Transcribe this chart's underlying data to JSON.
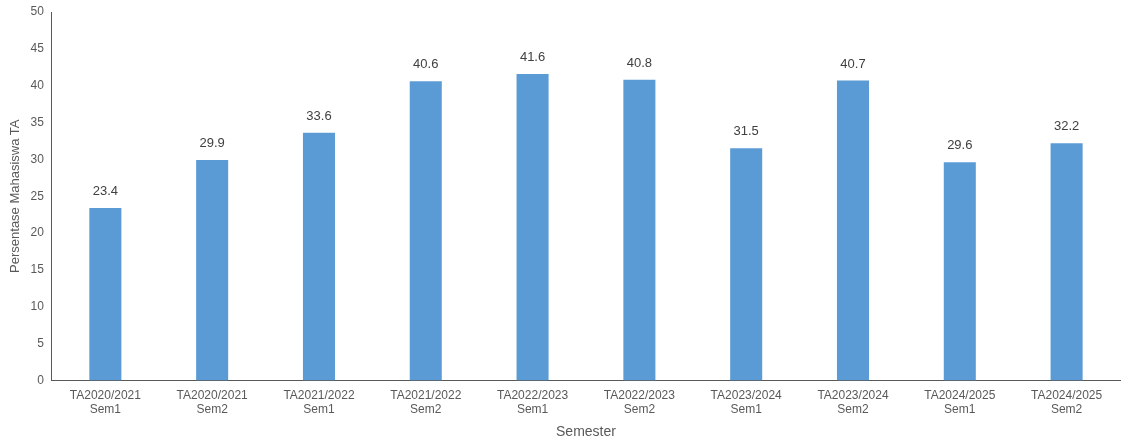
{
  "chart_data": {
    "type": "bar",
    "xlabel": "Semester",
    "ylabel": "Persentase Mahasiswa TA",
    "categories": [
      "TA2020/2021 Sem1",
      "TA2020/2021 Sem2",
      "TA2021/2022 Sem1",
      "TA2021/2022 Sem2",
      "TA2022/2023 Sem1",
      "TA2022/2023 Sem2",
      "TA2023/2024 Sem1",
      "TA2023/2024 Sem2",
      "TA2024/2025 Sem1",
      "TA2024/2025 Sem2"
    ],
    "values": [
      23.4,
      29.9,
      33.6,
      40.6,
      41.6,
      40.8,
      31.5,
      40.7,
      29.6,
      32.2
    ],
    "color": "#5b9bd5",
    "ylim": [
      0,
      50
    ],
    "yticks": [
      0,
      5,
      10,
      15,
      20,
      25,
      30,
      35,
      40,
      45,
      50
    ],
    "grid": false,
    "legend": false,
    "data_labels": true
  }
}
